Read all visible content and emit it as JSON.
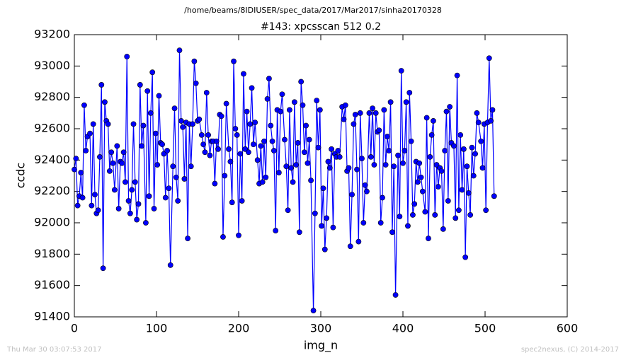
{
  "chart_data": {
    "type": "line",
    "suptitle": "/home/beams/8IDIUSER/spec_data/2017/Mar2017/sinha20170328",
    "title": "#143: xpcsscan 512 0.2",
    "xlabel": "img_n",
    "ylabel": "ccdc",
    "footer_left": "Thu Mar 30 03:07:53 2017",
    "footer_right": "spec2nexus, (C) 2014-2017",
    "xlim": [
      0,
      600
    ],
    "xticks": [
      0,
      100,
      200,
      300,
      400,
      500,
      600
    ],
    "ylim": [
      91400,
      93200
    ],
    "yticks": [
      91400,
      91600,
      91800,
      92000,
      92200,
      92400,
      92600,
      92800,
      93000,
      93200
    ],
    "color": "#0000ff",
    "x": [
      0,
      2,
      4,
      6,
      8,
      10,
      12,
      14,
      16,
      19,
      21,
      23,
      25,
      27,
      29,
      31,
      33,
      35,
      37,
      39,
      41,
      43,
      45,
      47,
      49,
      52,
      54,
      56,
      58,
      60,
      62,
      64,
      66,
      68,
      70,
      72,
      74,
      76,
      78,
      80,
      82,
      84,
      87,
      89,
      91,
      93,
      95,
      97,
      99,
      101,
      103,
      105,
      107,
      109,
      111,
      113,
      115,
      117,
      120,
      122,
      124,
      126,
      128,
      130,
      132,
      134,
      136,
      138,
      140,
      142,
      144,
      146,
      148,
      150,
      152,
      155,
      157,
      159,
      161,
      163,
      165,
      167,
      169,
      171,
      173,
      175,
      177,
      179,
      181,
      183,
      185,
      188,
      190,
      192,
      194,
      196,
      198,
      200,
      202,
      204,
      206,
      208,
      210,
      212,
      214,
      216,
      218,
      220,
      223,
      225,
      227,
      229,
      231,
      233,
      235,
      237,
      239,
      241,
      243,
      245,
      247,
      249,
      251,
      253,
      256,
      258,
      260,
      262,
      264,
      266,
      268,
      270,
      272,
      274,
      276,
      278,
      280,
      282,
      284,
      286,
      288,
      291,
      293,
      295,
      297,
      299,
      301,
      303,
      305,
      307,
      309,
      311,
      313,
      315,
      317,
      319,
      321,
      323,
      326,
      328,
      330,
      332,
      334,
      336,
      338,
      340,
      342,
      344,
      346,
      348,
      350,
      352,
      354,
      356,
      359,
      361,
      363,
      365,
      367,
      369,
      371,
      373,
      375,
      377,
      379,
      381,
      383,
      385,
      387,
      389,
      391,
      394,
      396,
      398,
      400,
      402,
      404,
      406,
      408,
      410,
      412,
      414,
      416,
      418,
      420,
      422,
      424,
      427,
      429,
      431,
      433,
      435,
      437,
      439,
      441,
      443,
      445,
      447,
      449,
      451,
      453,
      455,
      457,
      459,
      462,
      464,
      466,
      468,
      470,
      472,
      474,
      476,
      478,
      480,
      482,
      484,
      486,
      488,
      490,
      492,
      495,
      497,
      499,
      501,
      503,
      505,
      507,
      509,
      511
    ],
    "values": [
      92340,
      92410,
      92110,
      92170,
      92320,
      92160,
      92750,
      92460,
      92550,
      92570,
      92110,
      92630,
      92180,
      92060,
      92080,
      92420,
      92880,
      91710,
      92770,
      92650,
      92630,
      92330,
      92450,
      92380,
      92210,
      92490,
      92090,
      92390,
      92380,
      92450,
      92260,
      93060,
      92140,
      92060,
      92210,
      92630,
      92260,
      92020,
      92120,
      92880,
      92490,
      92620,
      92000,
      92840,
      92170,
      92700,
      92960,
      92090,
      92570,
      92370,
      92810,
      92510,
      92500,
      92440,
      92160,
      92460,
      92220,
      91730,
      92360,
      92730,
      92290,
      92140,
      93100,
      92650,
      92610,
      92280,
      92640,
      91900,
      92630,
      92360,
      92630,
      93030,
      92890,
      92650,
      92660,
      92560,
      92500,
      92450,
      92830,
      92560,
      92430,
      92520,
      92520,
      92250,
      92520,
      92470,
      92690,
      92680,
      91910,
      92300,
      92760,
      92470,
      92390,
      92130,
      93030,
      92600,
      92560,
      91920,
      92440,
      92140,
      92950,
      92470,
      92710,
      92450,
      92630,
      92860,
      92500,
      92640,
      92400,
      92250,
      92490,
      92260,
      92520,
      92290,
      92790,
      92920,
      92620,
      92520,
      92460,
      91950,
      92720,
      92320,
      92710,
      92820,
      92530,
      92360,
      92080,
      92720,
      92350,
      92260,
      92770,
      92370,
      92510,
      91940,
      92900,
      92750,
      92450,
      92620,
      92380,
      92530,
      92270,
      91440,
      92060,
      92780,
      92480,
      92720,
      91980,
      92220,
      91830,
      92030,
      92390,
      92350,
      92470,
      91970,
      92440,
      92420,
      92460,
      92420,
      92740,
      92660,
      92750,
      92330,
      92350,
      91850,
      92180,
      92630,
      92690,
      92340,
      91880,
      92700,
      92410,
      92000,
      92240,
      92200,
      92700,
      92420,
      92730,
      92370,
      92700,
      92580,
      92590,
      92000,
      92160,
      92720,
      92370,
      92550,
      92460,
      92770,
      91940,
      92360,
      91540,
      92430,
      92040,
      92970,
      92380,
      92460,
      92770,
      91980,
      92830,
      92520,
      92050,
      92120,
      92390,
      92260,
      92380,
      92290,
      92200,
      92070,
      92670,
      91900,
      92420,
      92560,
      92650,
      92050,
      92370,
      92230,
      92350,
      92330,
      91960,
      92460,
      92710,
      92140,
      92740,
      92510,
      92490,
      92030,
      92940,
      92080,
      92560,
      92210,
      92470,
      91780,
      92360,
      92190,
      92050,
      92480,
      92300,
      92440,
      92700,
      92640,
      92520,
      92350,
      92630,
      92080,
      92640,
      93050,
      92650,
      92720,
      92170
    ]
  }
}
